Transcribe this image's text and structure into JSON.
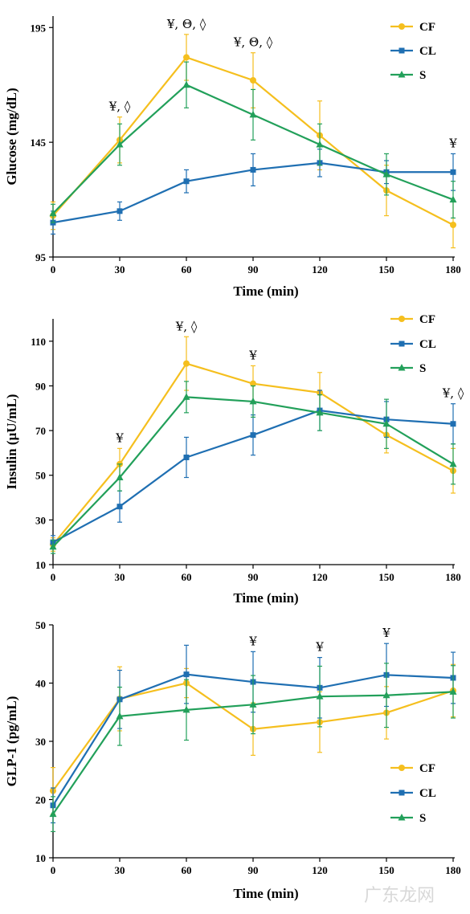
{
  "chart_data": [
    {
      "type": "line",
      "ylabel": "Glucose (mg/dL)",
      "xlabel": "Time (min)",
      "x": [
        0,
        30,
        60,
        90,
        120,
        150,
        180
      ],
      "xticks": [
        "0",
        "30",
        "60",
        "90",
        "120",
        "150",
        "180"
      ],
      "ylim": [
        95,
        200
      ],
      "yticks": [
        95,
        145,
        195
      ],
      "ytick_labels": [
        "95",
        "145",
        "195"
      ],
      "legend_position": "top-right",
      "series": [
        {
          "name": "CF",
          "color": "#f5bf1e",
          "marker": "circle",
          "values": [
            113,
            146,
            182,
            172,
            148,
            124,
            109
          ],
          "errors": [
            6,
            10,
            10,
            12,
            15,
            11,
            10
          ]
        },
        {
          "name": "CL",
          "color": "#1f6fb2",
          "marker": "square",
          "values": [
            110,
            115,
            128,
            133,
            136,
            132,
            132
          ],
          "errors": [
            5,
            4,
            5,
            7,
            6,
            5,
            8
          ]
        },
        {
          "name": "S",
          "color": "#22a05a",
          "marker": "triangle",
          "values": [
            114,
            144,
            170,
            157,
            144,
            131,
            120
          ],
          "errors": [
            4,
            9,
            10,
            11,
            9,
            9,
            8
          ]
        }
      ],
      "annotations": [
        {
          "x": 30,
          "text": "¥, ◊"
        },
        {
          "x": 60,
          "text": "¥, Θ, ◊"
        },
        {
          "x": 90,
          "text": "¥, Θ, ◊"
        },
        {
          "x": 180,
          "text": "¥"
        }
      ]
    },
    {
      "type": "line",
      "ylabel": "Insulin (µU/mL)",
      "xlabel": "Time (min)",
      "x": [
        0,
        30,
        60,
        90,
        120,
        150,
        180
      ],
      "xticks": [
        "0",
        "30",
        "60",
        "90",
        "120",
        "150",
        "180"
      ],
      "ylim": [
        10,
        120
      ],
      "yticks": [
        10,
        30,
        50,
        70,
        90,
        110
      ],
      "ytick_labels": [
        "10",
        "30",
        "50",
        "70",
        "90",
        "110"
      ],
      "legend_position": "top-right",
      "series": [
        {
          "name": "CF",
          "color": "#f5bf1e",
          "marker": "circle",
          "values": [
            19,
            55,
            100,
            91,
            87,
            68,
            52
          ],
          "errors": [
            3,
            7,
            12,
            8,
            9,
            8,
            10
          ]
        },
        {
          "name": "CL",
          "color": "#1f6fb2",
          "marker": "square",
          "values": [
            20,
            36,
            58,
            68,
            79,
            75,
            73
          ],
          "errors": [
            3,
            7,
            9,
            9,
            9,
            8,
            9
          ]
        },
        {
          "name": "S",
          "color": "#22a05a",
          "marker": "triangle",
          "values": [
            18,
            49,
            85,
            83,
            78,
            73,
            55
          ],
          "errors": [
            3,
            6,
            7,
            7,
            8,
            11,
            9
          ]
        }
      ],
      "annotations": [
        {
          "x": 30,
          "text": "¥"
        },
        {
          "x": 60,
          "text": "¥, ◊"
        },
        {
          "x": 90,
          "text": "¥"
        },
        {
          "x": 180,
          "text": "¥, ◊"
        }
      ]
    },
    {
      "type": "line",
      "ylabel": "GLP-1 (pg/mL)",
      "xlabel": "Time (min)",
      "x": [
        0,
        30,
        60,
        90,
        120,
        150,
        180
      ],
      "xticks": [
        "0",
        "30",
        "60",
        "90",
        "120",
        "150",
        "180"
      ],
      "ylim": [
        10,
        50
      ],
      "yticks": [
        10,
        20,
        30,
        40,
        50
      ],
      "ytick_labels": [
        "10",
        "20",
        "30",
        "40",
        "50"
      ],
      "legend_position": "bottom-right",
      "series": [
        {
          "name": "CF",
          "color": "#f5bf1e",
          "marker": "circle",
          "values": [
            21.5,
            37.3,
            40.0,
            32.1,
            33.3,
            34.9,
            38.7
          ],
          "errors": [
            4,
            5.5,
            2.5,
            4.5,
            5.2,
            4.5,
            4.5
          ]
        },
        {
          "name": "CL",
          "color": "#1f6fb2",
          "marker": "square",
          "values": [
            19.0,
            37.2,
            41.5,
            40.2,
            39.2,
            41.4,
            40.9
          ],
          "errors": [
            3,
            5,
            5,
            5.2,
            5.2,
            5.4,
            4.4
          ]
        },
        {
          "name": "S",
          "color": "#22a05a",
          "marker": "triangle",
          "values": [
            17.5,
            34.3,
            35.4,
            36.3,
            37.7,
            37.9,
            38.5
          ],
          "errors": [
            3,
            5,
            5.2,
            5,
            5.2,
            5.5,
            4.5
          ]
        }
      ],
      "annotations": [
        {
          "x": 90,
          "text": "¥"
        },
        {
          "x": 120,
          "text": "¥"
        },
        {
          "x": 150,
          "text": "¥"
        }
      ]
    }
  ],
  "watermark": {
    "text": "广东龙网"
  }
}
